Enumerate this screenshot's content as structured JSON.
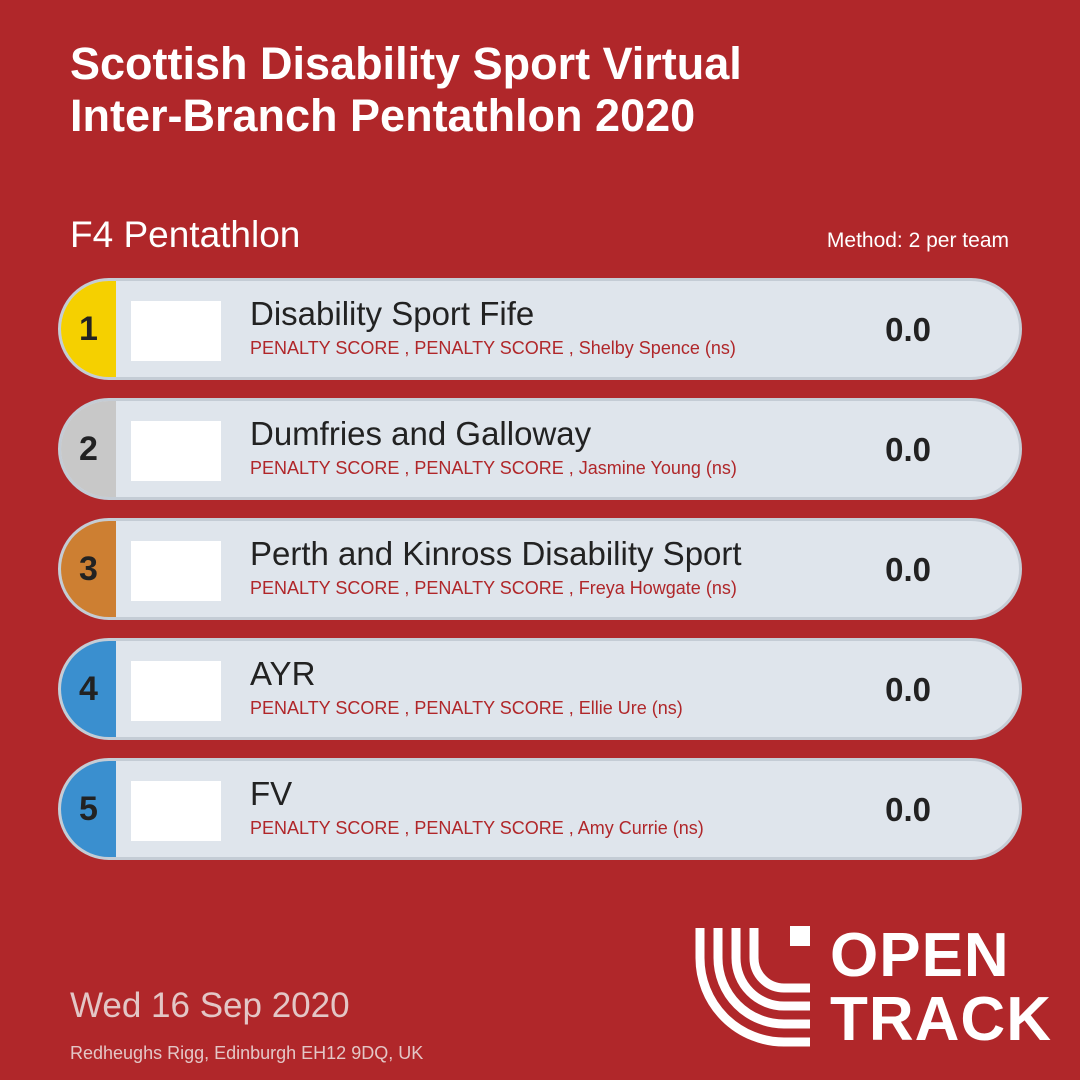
{
  "title_lines": [
    "Scottish Disability Sport Virtual",
    "Inter-Branch Pentathlon 2020"
  ],
  "event": "F4 Pentathlon",
  "method": "Method: 2 per team",
  "results": [
    {
      "position": "1",
      "team": "Disability Sport Fife",
      "members": "PENALTY SCORE , PENALTY SCORE , Shelby Spence (ns)",
      "score": "0.0",
      "color": "#f5d000"
    },
    {
      "position": "2",
      "team": "Dumfries and Galloway",
      "members": "PENALTY SCORE , PENALTY SCORE , Jasmine Young (ns)",
      "score": "0.0",
      "color": "#c8c8c8"
    },
    {
      "position": "3",
      "team": "Perth and Kinross Disability Sport",
      "members": "PENALTY SCORE , PENALTY SCORE , Freya Howgate (ns)",
      "score": "0.0",
      "color": "#cd7f32"
    },
    {
      "position": "4",
      "team": "AYR",
      "members": "PENALTY SCORE , PENALTY SCORE , Ellie Ure (ns)",
      "score": "0.0",
      "color": "#3a8fcf"
    },
    {
      "position": "5",
      "team": "FV",
      "members": "PENALTY SCORE , PENALTY SCORE , Amy Currie (ns)",
      "score": "0.0",
      "color": "#3a8fcf"
    }
  ],
  "date": "Wed 16 Sep 2020",
  "venue": "Redheughs Rigg, Edinburgh EH12 9DQ, UK",
  "brand_lines": [
    "OPEN",
    "TRACK"
  ],
  "brand_icon": "opentrack-stripes-logo",
  "colors": {
    "background": "#b0272a",
    "row": "#dfe5ec",
    "member_text": "#b0272a"
  }
}
